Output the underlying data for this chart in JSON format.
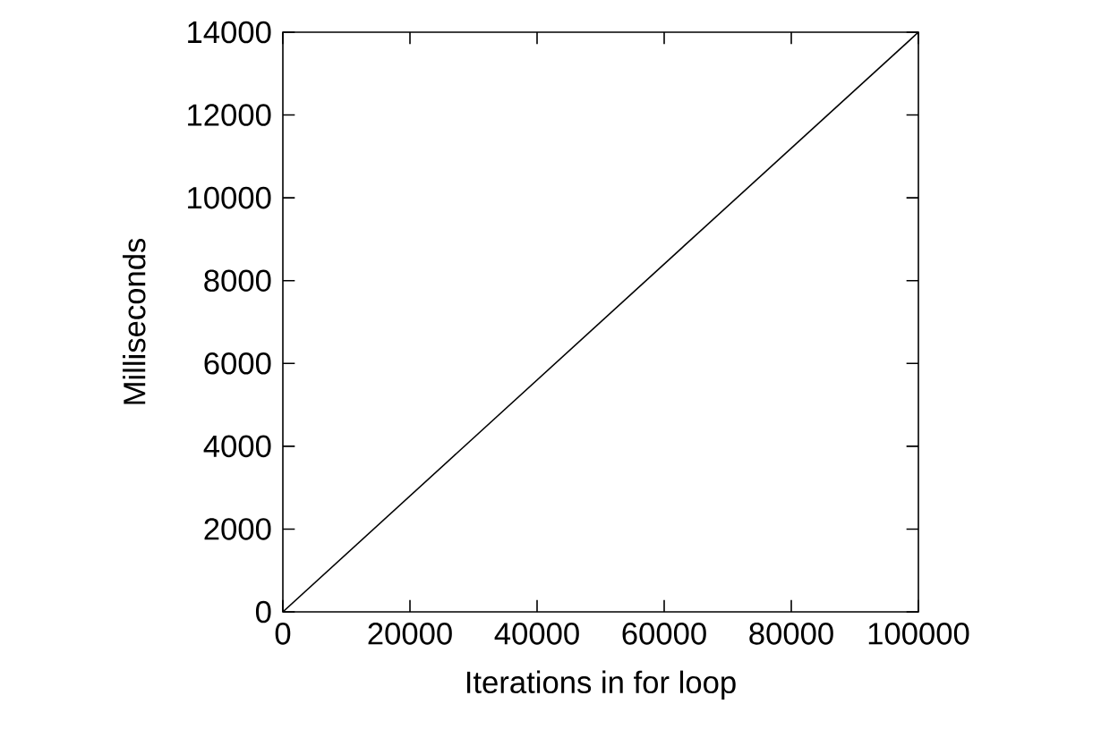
{
  "chart_data": {
    "type": "line",
    "xlabel": "Iterations in for loop",
    "ylabel": "Milliseconds",
    "x": [
      0,
      100000
    ],
    "series": [
      {
        "color": "#000000",
        "values": [
          0,
          14000
        ]
      }
    ],
    "xlim": [
      0,
      100000
    ],
    "ylim": [
      0,
      14000
    ],
    "xticks": [
      0,
      20000,
      40000,
      60000,
      80000,
      100000
    ],
    "yticks": [
      0,
      2000,
      4000,
      6000,
      8000,
      10000,
      12000,
      14000
    ]
  }
}
